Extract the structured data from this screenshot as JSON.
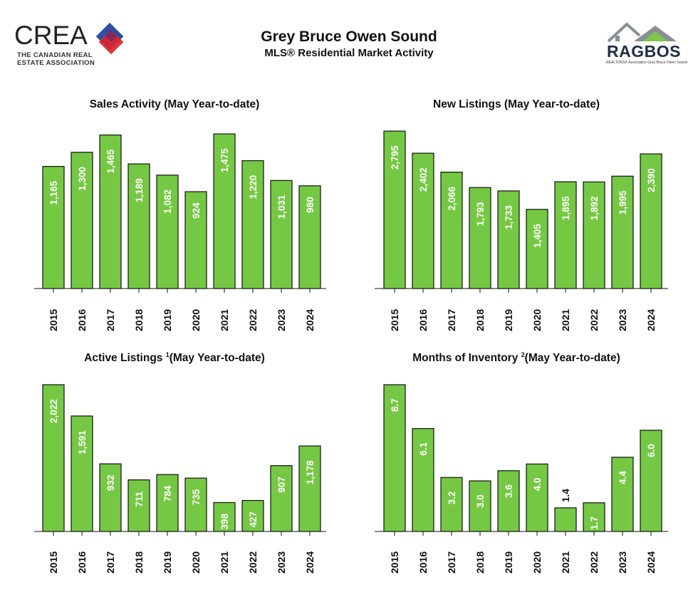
{
  "header": {
    "title": "Grey Bruce Owen Sound",
    "subtitle": "MLS® Residential Market Activity",
    "left_logo": {
      "word": "CREA",
      "line1": "THE CANADIAN REAL",
      "line2": "ESTATE ASSOCIATION"
    },
    "right_logo": {
      "word": "RAGBOS",
      "tagline": "REALTORS® Association Grey Bruce Owen Sound"
    }
  },
  "colors": {
    "bar_fill": "#75c843",
    "bar_stroke": "#111111",
    "label_inside": "#ffffff",
    "label_outside": "#111111"
  },
  "chart_data": [
    {
      "type": "bar",
      "title": "Sales Activity (May Year-to-date)",
      "title_sup": "",
      "categories": [
        "2015",
        "2016",
        "2017",
        "2018",
        "2019",
        "2020",
        "2021",
        "2022",
        "2023",
        "2024"
      ],
      "values": [
        1165,
        1300,
        1465,
        1189,
        1082,
        924,
        1475,
        1220,
        1031,
        980
      ],
      "labels": [
        "1,165",
        "1,300",
        "1,465",
        "1,189",
        "1,082",
        "924",
        "1,475",
        "1,220",
        "1,031",
        "980"
      ],
      "ylim": [
        0,
        1475
      ],
      "grid": false
    },
    {
      "type": "bar",
      "title": "New Listings (May Year-to-date)",
      "title_sup": "",
      "categories": [
        "2015",
        "2016",
        "2017",
        "2018",
        "2019",
        "2020",
        "2021",
        "2022",
        "2023",
        "2024"
      ],
      "values": [
        2795,
        2402,
        2066,
        1793,
        1733,
        1405,
        1895,
        1892,
        1995,
        2390
      ],
      "labels": [
        "2,795",
        "2,402",
        "2,066",
        "1,793",
        "1,733",
        "1,405",
        "1,895",
        "1,892",
        "1,995",
        "2,390"
      ],
      "ylim": [
        0,
        2795
      ],
      "grid": false
    },
    {
      "type": "bar",
      "title_pre": "Active Listings",
      "title_sup": "1",
      "title_post": "(May Year-to-date)",
      "categories": [
        "2015",
        "2016",
        "2017",
        "2018",
        "2019",
        "2020",
        "2021",
        "2022",
        "2023",
        "2024"
      ],
      "values": [
        2022,
        1591,
        932,
        711,
        784,
        735,
        398,
        427,
        907,
        1178
      ],
      "labels": [
        "2,022",
        "1,591",
        "932",
        "711",
        "784",
        "735",
        "398",
        "427",
        "907",
        "1,178"
      ],
      "ylim": [
        0,
        2022
      ],
      "grid": false
    },
    {
      "type": "bar",
      "title_pre": "Months of Inventory",
      "title_sup": "2",
      "title_post": "(May Year-to-date)",
      "categories": [
        "2015",
        "2016",
        "2017",
        "2018",
        "2019",
        "2020",
        "2021",
        "2022",
        "2023",
        "2024"
      ],
      "values": [
        8.7,
        6.1,
        3.2,
        3.0,
        3.6,
        4.0,
        1.4,
        1.7,
        4.4,
        6.0
      ],
      "labels": [
        "8.7",
        "6.1",
        "3.2",
        "3.0",
        "3.6",
        "4.0",
        "1.4",
        "1.7",
        "4.4",
        "6.0"
      ],
      "ylim": [
        0,
        8.7
      ],
      "grid": false
    }
  ]
}
